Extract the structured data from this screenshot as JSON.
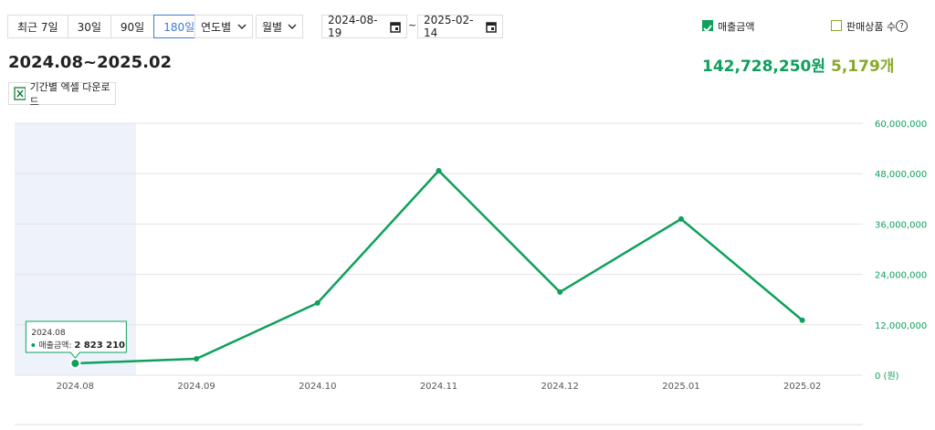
{
  "controls": {
    "period_buttons": [
      "최근 7일",
      "30일",
      "90일",
      "180일"
    ],
    "view_dropdowns": [
      "연도별",
      "월별"
    ],
    "date_range": {
      "start": "2024-08-19",
      "separator": "~",
      "end": "2025-02-14"
    },
    "metric_option": "판매상품 수"
  },
  "summary": {
    "period": "2024.08~2025.02",
    "sales_total": "142,728,250원",
    "items_total": "5,179개"
  },
  "excel_button": "기간별 엑셀 다운로드",
  "chart_data": {
    "type": "line",
    "categories": [
      "2024.08",
      "2024.09",
      "2024.10",
      "2024.11",
      "2024.12",
      "2025.01",
      "2025.02"
    ],
    "series": [
      {
        "name": "매출금액",
        "color": "#0ea05c",
        "values": [
          2823210,
          3900000,
          17200000,
          48700000,
          19800000,
          37200000,
          13100000
        ]
      }
    ],
    "value_labels": [
      "2 823 210",
      null,
      null,
      null,
      null,
      null,
      null
    ],
    "tooltip_label": "매출금액:",
    "ylim": [
      0,
      60000000
    ],
    "yticks": [
      {
        "value": 0,
        "label": "0 (원)"
      },
      {
        "value": 12000000,
        "label": "12,000,000"
      },
      {
        "value": 24000000,
        "label": "24,000,000"
      },
      {
        "value": 36000000,
        "label": "36,000,000"
      },
      {
        "value": 48000000,
        "label": "48,000,000"
      },
      {
        "value": 60000000,
        "label": "60,000,000"
      }
    ],
    "grid": true
  }
}
